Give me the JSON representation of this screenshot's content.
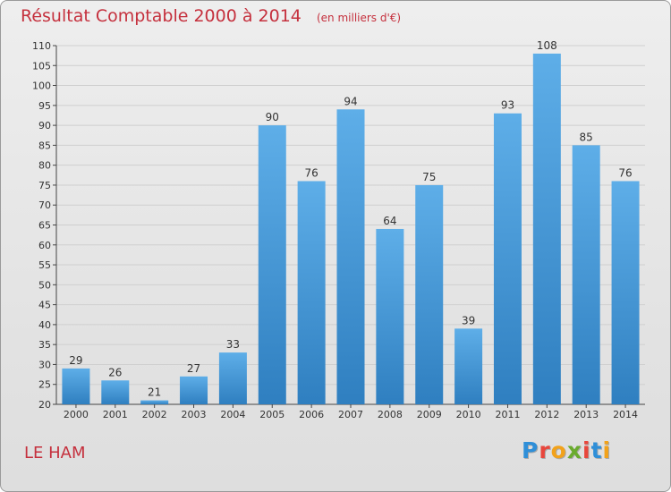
{
  "title": "Résultat Comptable 2000 à 2014",
  "subtitle": "(en milliers d'€)",
  "commune": "LE HAM",
  "logo": {
    "letters": [
      "P",
      "r",
      "o",
      "x",
      "i",
      "t",
      "i"
    ],
    "colors": [
      "#2f8fd8",
      "#e8463c",
      "#f2a21b",
      "#6aab2e",
      "#e8463c",
      "#2f8fd8",
      "#f2a21b"
    ]
  },
  "colors": {
    "title": "#c5303d",
    "bar_top": "#5eaee8",
    "bar_bottom": "#2f7fc0",
    "grid": "#cfcfcf",
    "axis": "#444444"
  },
  "chart_data": {
    "type": "bar",
    "categories": [
      "2000",
      "2001",
      "2002",
      "2003",
      "2004",
      "2005",
      "2006",
      "2007",
      "2008",
      "2009",
      "2010",
      "2011",
      "2012",
      "2013",
      "2014"
    ],
    "values": [
      29,
      26,
      21,
      27,
      33,
      90,
      76,
      94,
      64,
      75,
      39,
      93,
      108,
      85,
      76
    ],
    "ylim": [
      20,
      110
    ],
    "yticks": [
      20,
      25,
      30,
      35,
      40,
      45,
      50,
      55,
      60,
      65,
      70,
      75,
      80,
      85,
      90,
      95,
      100,
      105,
      110
    ],
    "grid": true,
    "data_labels": true
  }
}
